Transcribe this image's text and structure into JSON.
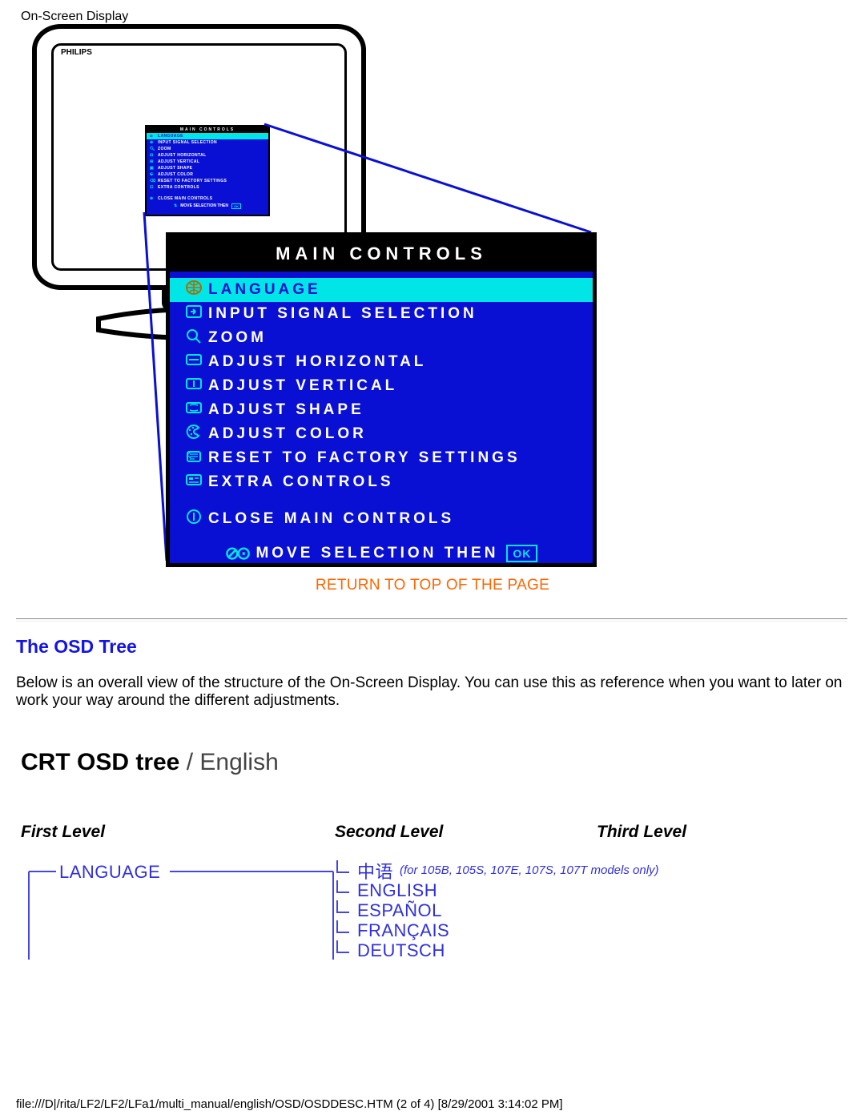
{
  "header": {
    "title": "On-Screen Display"
  },
  "monitor": {
    "brand": "PHILIPS"
  },
  "colors": {
    "osd_bg": "#0910d4",
    "osd_cyan": "#00e6e6",
    "osd_text": "#ffffff",
    "link_orange": "#ff6600",
    "heading_blue": "#1414e5",
    "tree_blue": "#3030e0"
  },
  "osd": {
    "title": "MAIN CONTROLS",
    "items": [
      {
        "icon": "globe",
        "label": "LANGUAGE",
        "selected": true
      },
      {
        "icon": "input",
        "label": "INPUT SIGNAL SELECTION",
        "selected": false
      },
      {
        "icon": "zoom",
        "label": "ZOOM",
        "selected": false
      },
      {
        "icon": "horiz",
        "label": "ADJUST HORIZONTAL",
        "selected": false
      },
      {
        "icon": "vert",
        "label": "ADJUST VERTICAL",
        "selected": false
      },
      {
        "icon": "shape",
        "label": "ADJUST SHAPE",
        "selected": false
      },
      {
        "icon": "color",
        "label": "ADJUST COLOR",
        "selected": false
      },
      {
        "icon": "reset",
        "label": "RESET TO FACTORY SETTINGS",
        "selected": false
      },
      {
        "icon": "extra",
        "label": "EXTRA CONTROLS",
        "selected": false
      }
    ],
    "close": {
      "icon": "close",
      "label": "CLOSE MAIN CONTROLS"
    },
    "footer": {
      "text": "MOVE SELECTION THEN",
      "ok": "OK"
    }
  },
  "link": {
    "return": "RETURN TO TOP OF THE PAGE"
  },
  "section": {
    "heading": "The OSD Tree",
    "para": "Below is an overall view of the structure of the On-Screen Display. You can use this as reference when you want to later on work your way around the different adjustments."
  },
  "tree": {
    "title_bold": "CRT OSD tree",
    "title_sep": " / ",
    "title_rest": "English",
    "levels": {
      "l1": "First Level",
      "l2": "Second Level",
      "l3": "Third Level"
    },
    "node1": "LANGUAGE",
    "subs": [
      {
        "label": "中语",
        "note": "(for 105B, 105S, 107E, 107S, 107T models only)"
      },
      {
        "label": "ENGLISH",
        "note": ""
      },
      {
        "label": "ESPAÑOL",
        "note": ""
      },
      {
        "label": "FRANÇAIS",
        "note": ""
      },
      {
        "label": "DEUTSCH",
        "note": ""
      }
    ]
  },
  "footer": {
    "text": "file:///D|/rita/LF2/LF2/LFa1/multi_manual/english/OSD/OSDDESC.HTM (2 of 4) [8/29/2001 3:14:02 PM]"
  }
}
